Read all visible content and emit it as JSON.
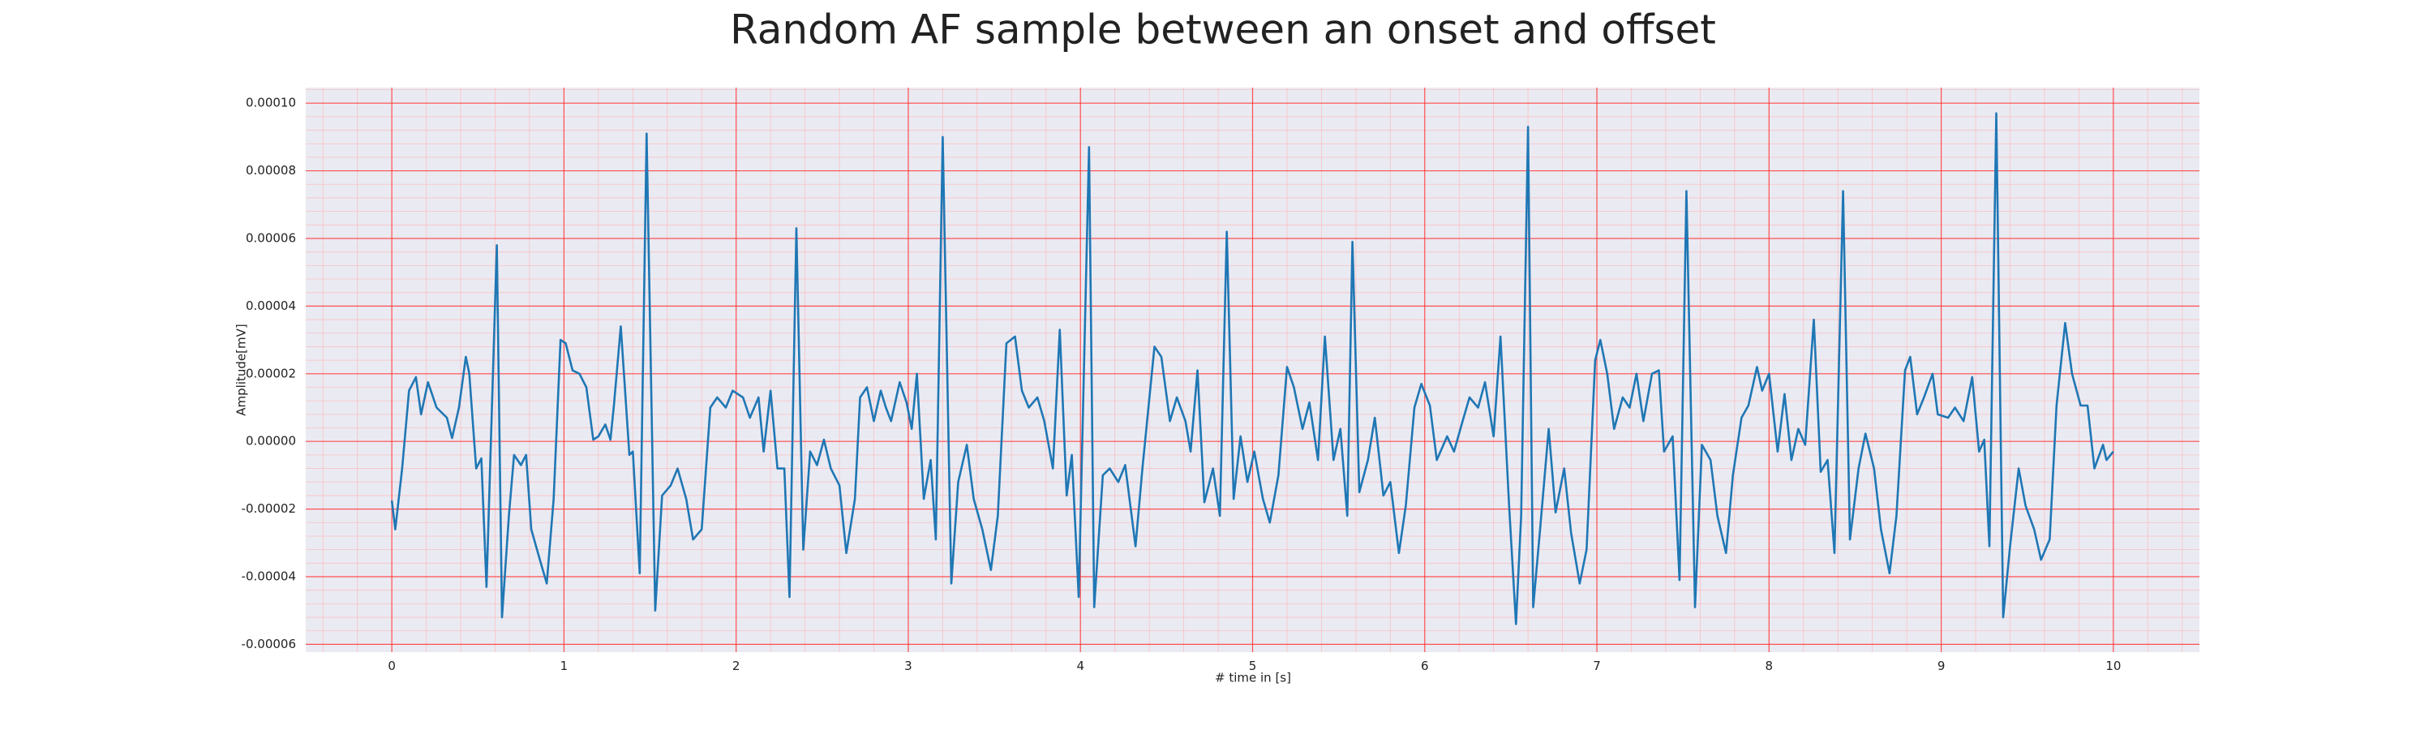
{
  "chart_data": {
    "type": "line",
    "title": "Random AF sample between an onset and offset",
    "xlabel": "# time in [s]",
    "ylabel": "Amplitude[mV]",
    "color": "#1f77b4",
    "grid": true,
    "minor_grid": true,
    "xlim": [
      -0.5,
      10.5
    ],
    "ylim": [
      -6.23e-05,
      0.0001046
    ],
    "xticks": [
      0,
      1,
      2,
      3,
      4,
      5,
      6,
      7,
      8,
      9,
      10
    ],
    "yticks": [
      {
        "value": -6e-05,
        "label": "-0.00006"
      },
      {
        "value": -4e-05,
        "label": "-0.00004"
      },
      {
        "value": -2e-05,
        "label": "-0.00002"
      },
      {
        "value": 0,
        "label": "0.00000"
      },
      {
        "value": 2e-05,
        "label": "0.00002"
      },
      {
        "value": 4e-05,
        "label": "0.00004"
      },
      {
        "value": 6e-05,
        "label": "0.00006"
      },
      {
        "value": 8e-05,
        "label": "0.00008"
      },
      {
        "value": 0.0001,
        "label": "0.00010"
      }
    ],
    "x": [
      0,
      0.02,
      0.06,
      0.1,
      0.14,
      0.17,
      0.21,
      0.26,
      0.32,
      0.35,
      0.39,
      0.43,
      0.45,
      0.49,
      0.52,
      0.55,
      0.61,
      0.64,
      0.68,
      0.71,
      0.75,
      0.78,
      0.81,
      0.86,
      0.9,
      0.94,
      0.98,
      1.01,
      1.05,
      1.09,
      1.13,
      1.17,
      1.2,
      1.24,
      1.27,
      1.29,
      1.33,
      1.38,
      1.4,
      1.44,
      1.48,
      1.53,
      1.57,
      1.62,
      1.66,
      1.71,
      1.75,
      1.8,
      1.85,
      1.89,
      1.94,
      1.98,
      2.04,
      2.08,
      2.13,
      2.16,
      2.2,
      2.24,
      2.28,
      2.31,
      2.35,
      2.39,
      2.43,
      2.47,
      2.51,
      2.55,
      2.6,
      2.64,
      2.69,
      2.72,
      2.76,
      2.8,
      2.84,
      2.87,
      2.9,
      2.95,
      2.99,
      3.02,
      3.05,
      3.09,
      3.13,
      3.16,
      3.2,
      3.25,
      3.29,
      3.34,
      3.38,
      3.43,
      3.48,
      3.52,
      3.57,
      3.62,
      3.66,
      3.7,
      3.75,
      3.79,
      3.84,
      3.88,
      3.92,
      3.95,
      3.99,
      4.05,
      4.08,
      4.13,
      4.17,
      4.22,
      4.26,
      4.32,
      4.36,
      4.43,
      4.47,
      4.52,
      4.56,
      4.61,
      4.64,
      4.68,
      4.72,
      4.77,
      4.81,
      4.85,
      4.89,
      4.93,
      4.97,
      5.01,
      5.06,
      5.1,
      5.15,
      5.2,
      5.24,
      5.29,
      5.33,
      5.38,
      5.42,
      5.47,
      5.51,
      5.55,
      5.58,
      5.62,
      5.67,
      5.71,
      5.76,
      5.8,
      5.85,
      5.89,
      5.94,
      5.98,
      6.03,
      6.07,
      6.13,
      6.17,
      6.22,
      6.26,
      6.31,
      6.35,
      6.4,
      6.44,
      6.49,
      6.53,
      6.56,
      6.6,
      6.63,
      6.67,
      6.72,
      6.76,
      6.81,
      6.85,
      6.9,
      6.94,
      6.99,
      7.02,
      7.06,
      7.1,
      7.15,
      7.19,
      7.23,
      7.27,
      7.32,
      7.36,
      7.39,
      7.44,
      7.48,
      7.52,
      7.57,
      7.61,
      7.66,
      7.7,
      7.75,
      7.79,
      7.84,
      7.88,
      7.93,
      7.96,
      8.0,
      8.05,
      8.09,
      8.13,
      8.17,
      8.21,
      8.26,
      8.3,
      8.34,
      8.38,
      8.43,
      8.47,
      8.52,
      8.56,
      8.61,
      8.65,
      8.7,
      8.74,
      8.79,
      8.82,
      8.86,
      8.9,
      8.95,
      8.98,
      9.04,
      9.08,
      9.13,
      9.18,
      9.22,
      9.25,
      9.28,
      9.32,
      9.36,
      9.4,
      9.45,
      9.49,
      9.54,
      9.58,
      9.63,
      9.67,
      9.72,
      9.76,
      9.81,
      9.85,
      9.89,
      9.94,
      9.96,
      10.0
    ],
    "values": [
      -1.75e-05,
      -2.6e-05,
      -8e-06,
      1.5e-05,
      1.9e-05,
      8e-06,
      1.75e-05,
      1e-05,
      7e-06,
      1e-06,
      1e-05,
      2.5e-05,
      2e-05,
      -8e-06,
      -5e-06,
      -4.3e-05,
      5.8e-05,
      -5.2e-05,
      -2.2e-05,
      -4e-06,
      -7e-06,
      -4e-06,
      -2.6e-05,
      -3.5e-05,
      -4.2e-05,
      -1.7e-05,
      3e-05,
      2.9e-05,
      2.1e-05,
      2e-05,
      1.6e-05,
      5e-07,
      1.5e-06,
      5e-06,
      5e-07,
      1.06e-05,
      3.4e-05,
      -4e-06,
      -3e-06,
      -3.9e-05,
      9.1e-05,
      -5e-05,
      -1.6e-05,
      -1.3e-05,
      -8e-06,
      -1.7e-05,
      -2.9e-05,
      -2.6e-05,
      1e-05,
      1.3e-05,
      1e-05,
      1.5e-05,
      1.3e-05,
      7e-06,
      1.3e-05,
      -3e-06,
      1.5e-05,
      -8e-06,
      -8e-06,
      -4.6e-05,
      6.3e-05,
      -3.2e-05,
      -3e-06,
      -7e-06,
      5e-07,
      -8e-06,
      -1.3e-05,
      -3.3e-05,
      -1.7e-05,
      1.3e-05,
      1.6e-05,
      6e-06,
      1.5e-05,
      1e-05,
      6e-06,
      1.75e-05,
      1.15e-05,
      3.7e-06,
      2e-05,
      -1.7e-05,
      -5.5e-06,
      -2.9e-05,
      9e-05,
      -4.2e-05,
      -1.2e-05,
      -1e-06,
      -1.7e-05,
      -2.6e-05,
      -3.8e-05,
      -2.2e-05,
      2.9e-05,
      3.1e-05,
      1.5e-05,
      1e-05,
      1.3e-05,
      6e-06,
      -8e-06,
      3.3e-05,
      -1.6e-05,
      -4e-06,
      -4.6e-05,
      8.7e-05,
      -4.9e-05,
      -1e-05,
      -8e-06,
      -1.2e-05,
      -7e-06,
      -3.1e-05,
      -8e-06,
      2.8e-05,
      2.5e-05,
      6e-06,
      1.3e-05,
      6e-06,
      -3e-06,
      2.1e-05,
      -1.8e-05,
      -8e-06,
      -2.2e-05,
      6.2e-05,
      -1.7e-05,
      1.5e-06,
      -1.2e-05,
      -3e-06,
      -1.7e-05,
      -2.4e-05,
      -1e-05,
      2.2e-05,
      1.6e-05,
      3.7e-06,
      1.15e-05,
      -5.5e-06,
      3.1e-05,
      -5.5e-06,
      3.7e-06,
      -2.2e-05,
      5.9e-05,
      -1.5e-05,
      -5.5e-06,
      7e-06,
      -1.6e-05,
      -1.2e-05,
      -3.3e-05,
      -1.9e-05,
      1e-05,
      1.7e-05,
      1.06e-05,
      -5.5e-06,
      1.5e-06,
      -3e-06,
      6e-06,
      1.3e-05,
      1e-05,
      1.75e-05,
      1.5e-06,
      3.1e-05,
      -1.9e-05,
      -5.4e-05,
      -2.2e-05,
      9.3e-05,
      -4.9e-05,
      -2.6e-05,
      3.7e-06,
      -2.1e-05,
      -8e-06,
      -2.7e-05,
      -4.2e-05,
      -3.2e-05,
      2.4e-05,
      3e-05,
      2e-05,
      3.7e-06,
      1.3e-05,
      1e-05,
      2e-05,
      6e-06,
      2e-05,
      2.1e-05,
      -3e-06,
      1.5e-06,
      -4.1e-05,
      7.4e-05,
      -4.9e-05,
      -1e-06,
      -5.5e-06,
      -2.2e-05,
      -3.3e-05,
      -1e-05,
      7e-06,
      1.06e-05,
      2.2e-05,
      1.5e-05,
      2e-05,
      -3e-06,
      1.4e-05,
      -5.5e-06,
      3.7e-06,
      -1e-06,
      3.6e-05,
      -9e-06,
      -5.5e-06,
      -3.3e-05,
      7.4e-05,
      -2.9e-05,
      -8e-06,
      2.3e-06,
      -8e-06,
      -2.6e-05,
      -3.9e-05,
      -2.2e-05,
      2.1e-05,
      2.5e-05,
      8e-06,
      1.3e-05,
      2e-05,
      8e-06,
      7e-06,
      1e-05,
      6e-06,
      1.9e-05,
      -3e-06,
      5e-07,
      -3.1e-05,
      9.7e-05,
      -5.2e-05,
      -3.1e-05,
      -8e-06,
      -1.9e-05,
      -2.6e-05,
      -3.5e-05,
      -2.9e-05,
      1.06e-05,
      3.5e-05,
      2e-05,
      1.06e-05,
      1.06e-05,
      -8e-06,
      -1e-06,
      -5.5e-06,
      -3e-06
    ]
  }
}
